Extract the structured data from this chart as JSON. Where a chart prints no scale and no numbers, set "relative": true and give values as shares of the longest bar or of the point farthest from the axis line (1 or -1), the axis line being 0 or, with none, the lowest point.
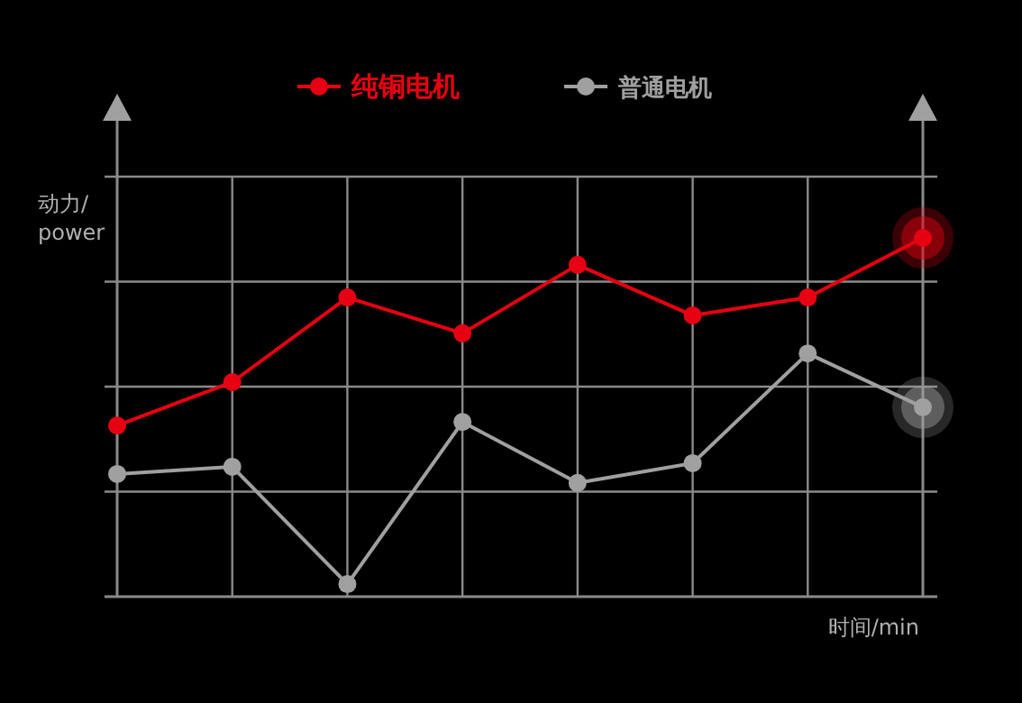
{
  "chart_data": {
    "type": "line",
    "relative": true,
    "categories": [
      null,
      null,
      null,
      null,
      null,
      null,
      null,
      null
    ],
    "series": [
      {
        "name": "纯铜电机",
        "color": "#e60012",
        "values": [
          0.477,
          0.598,
          0.834,
          0.734,
          0.925,
          0.784,
          0.834,
          1
        ]
      },
      {
        "name": "普通电机",
        "color": "#a0a0a0",
        "values": [
          0.342,
          0.362,
          0.035,
          0.487,
          0.317,
          0.372,
          0.678,
          0.528
        ]
      }
    ],
    "xlabel": "时间/min",
    "ylabel": "动力/\npower",
    "grid": true,
    "legend": "top",
    "marker": "circle",
    "line_style": "solid"
  }
}
